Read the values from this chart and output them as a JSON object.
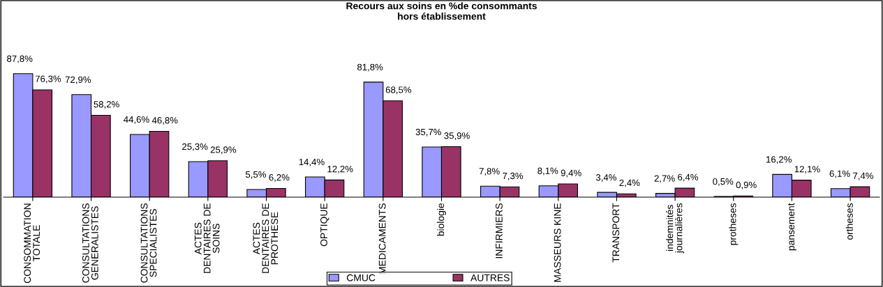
{
  "chart_data": {
    "type": "bar",
    "title": "Recours aux soins en %de consommants\nhors établissement",
    "categories": [
      "CONSOMMATION\nTOTALE",
      "CONSULTATIONS\nGENERALISTES",
      "CONSULTATIONS\nSPECIALISTES",
      "ACTES\nDENTAIRES DE\nSOINS",
      "ACTES\nDENTAIRES DE\nPROTHESE",
      "OPTIQUE",
      "MEDICAMENTS",
      "biologie",
      "INFIRMIERS",
      "MASSEURS KINE",
      "TRANSPORT",
      "indemnités\njournalières",
      "protheses",
      "pansement",
      "ortheses"
    ],
    "series": [
      {
        "name": "CMUC",
        "color": "#9999ff",
        "values": [
          87.8,
          72.9,
          44.6,
          25.3,
          5.5,
          14.4,
          81.8,
          35.7,
          7.8,
          8.1,
          3.4,
          2.7,
          0.5,
          16.2,
          6.1
        ],
        "value_labels": [
          "87,8%",
          "72,9%",
          "44,6%",
          "25,3%",
          "5,5%",
          "14,4%",
          "81,8%",
          "35,7%",
          "7,8%",
          "8,1%",
          "3,4%",
          "2,7%",
          "0,5%",
          "16,2%",
          "6,1%"
        ]
      },
      {
        "name": "AUTRES",
        "color": "#993366",
        "values": [
          76.3,
          58.2,
          46.8,
          25.9,
          6.2,
          12.2,
          68.5,
          35.9,
          7.3,
          9.4,
          2.4,
          6.4,
          0.9,
          12.1,
          7.4
        ],
        "value_labels": [
          "76,3%",
          "58,2%",
          "46,8%",
          "25,9%",
          "6,2%",
          "12,2%",
          "68,5%",
          "35,9%",
          "7,3%",
          "9,4%",
          "2,4%",
          "6,4%",
          "0,9%",
          "12,1%",
          "7,4%"
        ]
      }
    ],
    "grid": false,
    "legend": "bottom"
  }
}
